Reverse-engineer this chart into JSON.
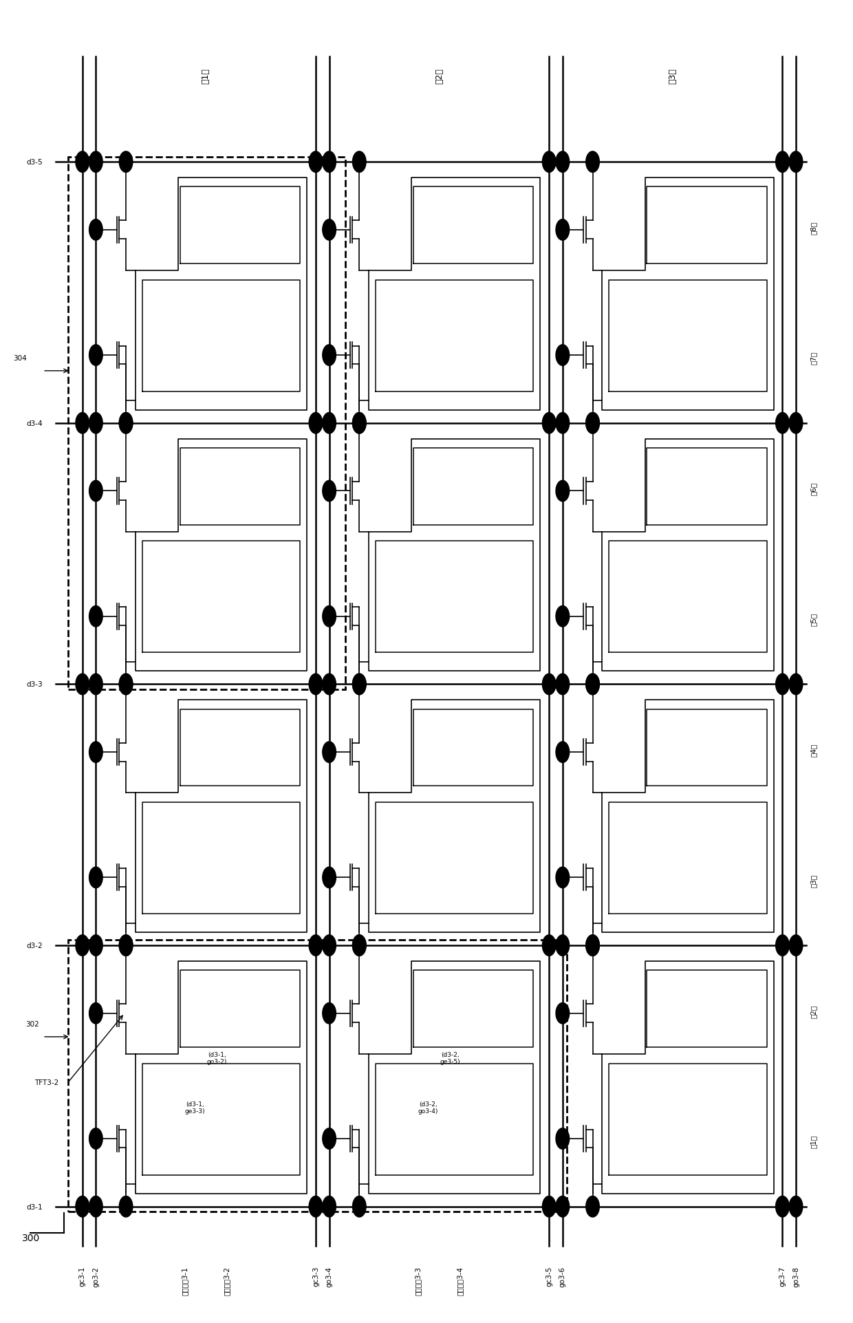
{
  "bg_color": "#ffffff",
  "line_color": "#000000",
  "figure_width": 12.4,
  "figure_height": 19.24,
  "row_labels": [
    "第1行",
    "第2行",
    "第3行"
  ],
  "col_labels": [
    "第1列",
    "第2列",
    "第3列",
    "第4列",
    "第5列",
    "第6列",
    "第7列",
    "第8列"
  ],
  "d_labels": [
    "d3-1",
    "d3-2",
    "d3-3",
    "d3-4",
    "d3-5"
  ],
  "annotation_302": "302",
  "annotation_304": "304",
  "annotation_tft": "TFT3-2",
  "cell_ann": [
    "(d3-1,\nge3-3)",
    "(d3-1,\ngo3-2)",
    "(d3-2,\ngo3-4)",
    "(d3-2,\nge3-5)"
  ]
}
